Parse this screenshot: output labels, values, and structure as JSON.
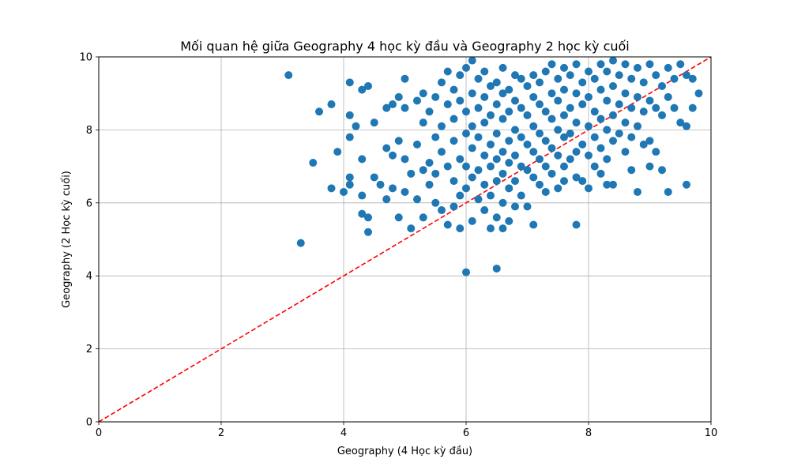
{
  "chart_data": {
    "type": "scatter",
    "title": "Mối quan hệ giữa Geography 4 học kỳ đầu và Geography 2 học kỳ cuối",
    "xlabel": "Geography (4 Học kỳ đầu)",
    "ylabel": "Geography (2 Học kỳ cuối)",
    "xlim": [
      0,
      10
    ],
    "ylim": [
      0,
      10
    ],
    "xticks": [
      "0",
      "2",
      "4",
      "6",
      "8",
      "10"
    ],
    "yticks": [
      "0",
      "2",
      "4",
      "6",
      "8",
      "10"
    ],
    "grid": true,
    "reference_line": {
      "style": "dashed",
      "color": "#ff0000",
      "from": [
        0,
        0
      ],
      "to": [
        10,
        10
      ]
    },
    "point_color": "#1f77b4",
    "series": [
      {
        "points": [
          [
            3.1,
            9.5
          ],
          [
            3.3,
            4.9
          ],
          [
            3.5,
            7.1
          ],
          [
            3.6,
            8.5
          ],
          [
            3.8,
            8.7
          ],
          [
            3.8,
            6.4
          ],
          [
            3.9,
            7.4
          ],
          [
            4.0,
            6.3
          ],
          [
            4.1,
            9.3
          ],
          [
            4.1,
            8.4
          ],
          [
            4.1,
            7.8
          ],
          [
            4.1,
            6.7
          ],
          [
            4.1,
            6.5
          ],
          [
            4.2,
            8.1
          ],
          [
            4.3,
            9.1
          ],
          [
            4.3,
            7.2
          ],
          [
            4.3,
            6.2
          ],
          [
            4.3,
            5.7
          ],
          [
            4.4,
            9.2
          ],
          [
            4.4,
            5.6
          ],
          [
            4.4,
            5.2
          ],
          [
            4.5,
            8.2
          ],
          [
            4.5,
            6.7
          ],
          [
            4.6,
            6.5
          ],
          [
            4.7,
            8.6
          ],
          [
            4.7,
            7.5
          ],
          [
            4.7,
            6.1
          ],
          [
            4.8,
            8.7
          ],
          [
            4.8,
            7.3
          ],
          [
            4.8,
            6.4
          ],
          [
            4.9,
            8.9
          ],
          [
            4.9,
            7.7
          ],
          [
            4.9,
            5.6
          ],
          [
            5.0,
            9.4
          ],
          [
            5.0,
            8.6
          ],
          [
            5.0,
            7.2
          ],
          [
            5.0,
            6.3
          ],
          [
            5.1,
            6.8
          ],
          [
            5.1,
            5.3
          ],
          [
            5.2,
            8.8
          ],
          [
            5.2,
            7.6
          ],
          [
            5.2,
            6.1
          ],
          [
            5.3,
            9.0
          ],
          [
            5.3,
            8.2
          ],
          [
            5.3,
            6.9
          ],
          [
            5.3,
            5.6
          ],
          [
            5.4,
            8.5
          ],
          [
            5.4,
            7.1
          ],
          [
            5.4,
            6.5
          ],
          [
            5.5,
            8.9
          ],
          [
            5.5,
            7.8
          ],
          [
            5.5,
            6.8
          ],
          [
            5.5,
            6.0
          ],
          [
            5.6,
            9.3
          ],
          [
            5.6,
            8.1
          ],
          [
            5.6,
            7.4
          ],
          [
            5.6,
            5.8
          ],
          [
            5.7,
            9.6
          ],
          [
            5.7,
            8.7
          ],
          [
            5.7,
            7.0
          ],
          [
            5.7,
            5.4
          ],
          [
            5.8,
            9.1
          ],
          [
            5.8,
            8.3
          ],
          [
            5.8,
            7.7
          ],
          [
            5.8,
            6.6
          ],
          [
            5.8,
            5.9
          ],
          [
            5.9,
            9.5
          ],
          [
            5.9,
            8.8
          ],
          [
            5.9,
            7.2
          ],
          [
            5.9,
            6.2
          ],
          [
            5.9,
            5.3
          ],
          [
            6.0,
            9.7
          ],
          [
            6.0,
            8.5
          ],
          [
            6.0,
            7.9
          ],
          [
            6.0,
            7.0
          ],
          [
            6.0,
            6.4
          ],
          [
            6.0,
            4.1
          ],
          [
            6.1,
            9.9
          ],
          [
            6.1,
            9.0
          ],
          [
            6.1,
            8.1
          ],
          [
            6.1,
            7.5
          ],
          [
            6.1,
            6.7
          ],
          [
            6.1,
            5.5
          ],
          [
            6.2,
            9.4
          ],
          [
            6.2,
            8.6
          ],
          [
            6.2,
            7.8
          ],
          [
            6.2,
            6.9
          ],
          [
            6.2,
            6.1
          ],
          [
            6.3,
            9.6
          ],
          [
            6.3,
            8.9
          ],
          [
            6.3,
            8.2
          ],
          [
            6.3,
            7.3
          ],
          [
            6.3,
            6.5
          ],
          [
            6.3,
            5.8
          ],
          [
            6.4,
            9.2
          ],
          [
            6.4,
            8.4
          ],
          [
            6.4,
            7.6
          ],
          [
            6.4,
            7.0
          ],
          [
            6.4,
            6.2
          ],
          [
            6.4,
            5.3
          ],
          [
            6.5,
            9.3
          ],
          [
            6.5,
            8.7
          ],
          [
            6.5,
            7.9
          ],
          [
            6.5,
            7.2
          ],
          [
            6.5,
            6.6
          ],
          [
            6.5,
            5.6
          ],
          [
            6.5,
            4.2
          ],
          [
            6.6,
            9.7
          ],
          [
            6.6,
            9.0
          ],
          [
            6.6,
            8.3
          ],
          [
            6.6,
            7.4
          ],
          [
            6.6,
            6.8
          ],
          [
            6.6,
            6.0
          ],
          [
            6.6,
            5.3
          ],
          [
            6.7,
            9.1
          ],
          [
            6.7,
            8.5
          ],
          [
            6.7,
            7.7
          ],
          [
            6.7,
            7.1
          ],
          [
            6.7,
            6.4
          ],
          [
            6.7,
            5.5
          ],
          [
            6.8,
            9.5
          ],
          [
            6.8,
            8.8
          ],
          [
            6.8,
            8.0
          ],
          [
            6.8,
            7.3
          ],
          [
            6.8,
            6.6
          ],
          [
            6.8,
            5.9
          ],
          [
            6.9,
            9.4
          ],
          [
            6.9,
            8.6
          ],
          [
            6.9,
            7.8
          ],
          [
            6.9,
            7.0
          ],
          [
            6.9,
            6.2
          ],
          [
            7.0,
            9.2
          ],
          [
            7.0,
            8.4
          ],
          [
            7.0,
            7.6
          ],
          [
            7.0,
            6.9
          ],
          [
            7.0,
            5.9
          ],
          [
            7.1,
            9.5
          ],
          [
            7.1,
            8.9
          ],
          [
            7.1,
            8.1
          ],
          [
            7.1,
            7.4
          ],
          [
            7.1,
            6.7
          ],
          [
            7.1,
            5.4
          ],
          [
            7.2,
            9.3
          ],
          [
            7.2,
            8.7
          ],
          [
            7.2,
            7.9
          ],
          [
            7.2,
            7.2
          ],
          [
            7.2,
            6.5
          ],
          [
            7.3,
            9.6
          ],
          [
            7.3,
            8.5
          ],
          [
            7.3,
            7.7
          ],
          [
            7.3,
            7.0
          ],
          [
            7.3,
            6.3
          ],
          [
            7.4,
            9.8
          ],
          [
            7.4,
            9.0
          ],
          [
            7.4,
            8.3
          ],
          [
            7.4,
            7.5
          ],
          [
            7.4,
            6.8
          ],
          [
            7.5,
            9.4
          ],
          [
            7.5,
            8.8
          ],
          [
            7.5,
            8.0
          ],
          [
            7.5,
            7.3
          ],
          [
            7.5,
            6.4
          ],
          [
            7.6,
            9.7
          ],
          [
            7.6,
            9.1
          ],
          [
            7.6,
            8.4
          ],
          [
            7.6,
            7.8
          ],
          [
            7.6,
            7.0
          ],
          [
            7.6,
            6.6
          ],
          [
            7.7,
            9.5
          ],
          [
            7.7,
            8.6
          ],
          [
            7.7,
            7.9
          ],
          [
            7.7,
            7.2
          ],
          [
            7.8,
            9.8
          ],
          [
            7.8,
            9.0
          ],
          [
            7.8,
            8.2
          ],
          [
            7.8,
            7.4
          ],
          [
            7.8,
            6.7
          ],
          [
            7.8,
            5.4
          ],
          [
            7.9,
            9.3
          ],
          [
            7.9,
            8.7
          ],
          [
            7.9,
            7.6
          ],
          [
            7.9,
            6.6
          ],
          [
            8.0,
            9.6
          ],
          [
            8.0,
            8.9
          ],
          [
            8.0,
            8.1
          ],
          [
            8.0,
            7.3
          ],
          [
            8.0,
            6.4
          ],
          [
            8.1,
            9.4
          ],
          [
            8.1,
            8.5
          ],
          [
            8.1,
            7.8
          ],
          [
            8.1,
            7.0
          ],
          [
            8.2,
            9.8
          ],
          [
            8.2,
            9.1
          ],
          [
            8.2,
            8.3
          ],
          [
            8.2,
            7.5
          ],
          [
            8.2,
            6.8
          ],
          [
            8.3,
            9.6
          ],
          [
            8.3,
            8.8
          ],
          [
            8.3,
            8.0
          ],
          [
            8.3,
            7.2
          ],
          [
            8.3,
            6.5
          ],
          [
            8.4,
            9.9
          ],
          [
            8.4,
            9.2
          ],
          [
            8.4,
            8.4
          ],
          [
            8.4,
            7.7
          ],
          [
            8.4,
            6.5
          ],
          [
            8.5,
            9.5
          ],
          [
            8.5,
            8.7
          ],
          [
            8.5,
            7.9
          ],
          [
            8.6,
            9.8
          ],
          [
            8.6,
            9.0
          ],
          [
            8.6,
            8.2
          ],
          [
            8.6,
            7.4
          ],
          [
            8.7,
            9.4
          ],
          [
            8.7,
            8.6
          ],
          [
            8.7,
            7.8
          ],
          [
            8.7,
            6.9
          ],
          [
            8.8,
            9.7
          ],
          [
            8.8,
            8.9
          ],
          [
            8.8,
            8.1
          ],
          [
            8.8,
            6.3
          ],
          [
            8.9,
            9.3
          ],
          [
            8.9,
            8.5
          ],
          [
            8.9,
            7.6
          ],
          [
            9.0,
            9.8
          ],
          [
            9.0,
            8.8
          ],
          [
            9.0,
            7.7
          ],
          [
            9.0,
            7.0
          ],
          [
            9.1,
            9.5
          ],
          [
            9.1,
            8.6
          ],
          [
            9.1,
            7.4
          ],
          [
            9.2,
            9.2
          ],
          [
            9.2,
            8.4
          ],
          [
            9.2,
            6.9
          ],
          [
            9.3,
            9.7
          ],
          [
            9.3,
            8.9
          ],
          [
            9.3,
            6.3
          ],
          [
            9.4,
            9.4
          ],
          [
            9.4,
            8.6
          ],
          [
            9.5,
            9.8
          ],
          [
            9.5,
            8.2
          ],
          [
            9.6,
            9.5
          ],
          [
            9.6,
            8.1
          ],
          [
            9.6,
            6.5
          ],
          [
            9.7,
            9.4
          ],
          [
            9.7,
            8.6
          ],
          [
            9.8,
            9.0
          ]
        ]
      }
    ]
  }
}
